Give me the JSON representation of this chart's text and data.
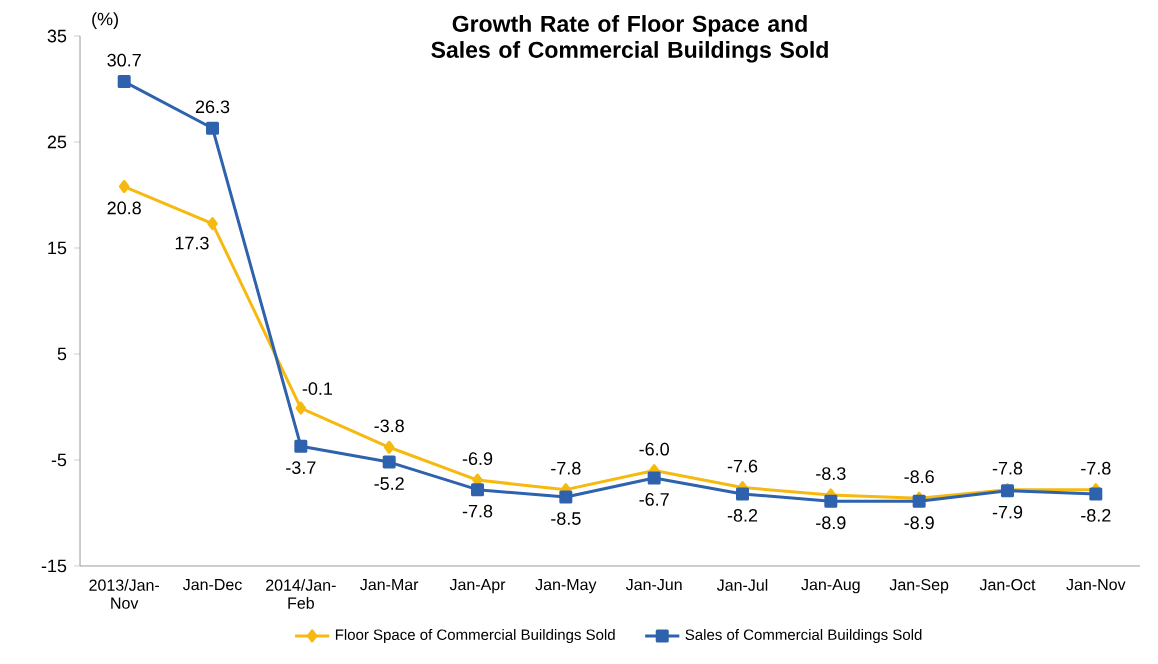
{
  "chart_data": {
    "type": "line",
    "title": "Growth Rate of Floor Space and Sales of Commercial Buildings Sold",
    "ylabel": "(%)",
    "categories": [
      "2013/Jan-Nov",
      "Jan-Dec",
      "2014/Jan-Feb",
      "Jan-Mar",
      "Jan-Apr",
      "Jan-May",
      "Jan-Jun",
      "Jan-Jul",
      "Jan-Aug",
      "Jan-Sep",
      "Jan-Oct",
      "Jan-Nov"
    ],
    "series": [
      {
        "name": "Floor Space of Commercial Buildings Sold",
        "color": "#f5b90f",
        "marker": "diamond",
        "values": [
          20.8,
          17.3,
          -0.1,
          -3.8,
          -6.9,
          -7.8,
          -6.0,
          -7.6,
          -8.3,
          -8.6,
          -7.8,
          -7.8
        ],
        "value_labels": [
          "20.8",
          "17.3",
          "-0.1",
          "-3.8",
          "-6.9",
          "-7.8",
          "-6.0",
          "-7.6",
          "-8.3",
          "-8.6",
          "-7.8",
          "-7.8"
        ]
      },
      {
        "name": "Sales of Commercial Buildings Sold",
        "color": "#2f62ad",
        "marker": "square",
        "values": [
          30.7,
          26.3,
          -3.7,
          -5.2,
          -7.8,
          -8.5,
          -6.7,
          -8.2,
          -8.9,
          -8.9,
          -7.9,
          -8.2
        ],
        "value_labels": [
          "30.7",
          "26.3",
          "-3.7",
          "-5.2",
          "-7.8",
          "-8.5",
          "-6.7",
          "-8.2",
          "-8.9",
          "-8.9",
          "-7.9",
          "-8.2"
        ]
      }
    ],
    "ylim": [
      -15,
      35
    ],
    "yticks": [
      -15,
      -5,
      5,
      15,
      25,
      35
    ],
    "grid": false,
    "legend": "bottom",
    "line_style": "solid"
  }
}
